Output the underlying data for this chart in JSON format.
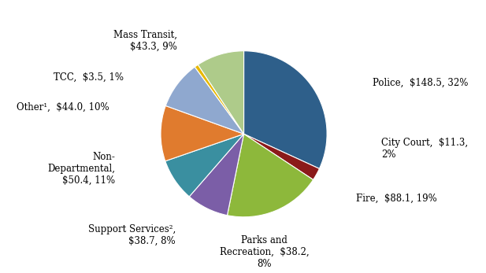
{
  "slices": [
    {
      "label": "Police,  $148.5, 32%",
      "value": 148.5,
      "color": "#2E5F8A"
    },
    {
      "label": "City Court,  $11.3,\n2%",
      "value": 11.3,
      "color": "#8B1A1A"
    },
    {
      "label": "Fire,  $88.1, 19%",
      "value": 88.1,
      "color": "#8DB83B"
    },
    {
      "label": "Parks and\nRecreation,  $38.2,\n8%",
      "value": 38.2,
      "color": "#7B5EA7"
    },
    {
      "label": "Support Services²,\n$38.7, 8%",
      "value": 38.7,
      "color": "#3A8FA0"
    },
    {
      "label": "Non-\nDepartmental,\n$50.4, 11%",
      "value": 50.4,
      "color": "#E07B2E"
    },
    {
      "label": "Other¹,  $44.0, 10%",
      "value": 44.0,
      "color": "#8FA8CF"
    },
    {
      "label": "TCC,  $3.5, 1%",
      "value": 3.5,
      "color": "#E8B800"
    },
    {
      "label": "Mass Transit,\n$43.3, 9%",
      "value": 43.3,
      "color": "#AECB8A"
    }
  ],
  "background_color": "#FFFFFF",
  "label_fontsize": 8.5,
  "startangle": 90
}
